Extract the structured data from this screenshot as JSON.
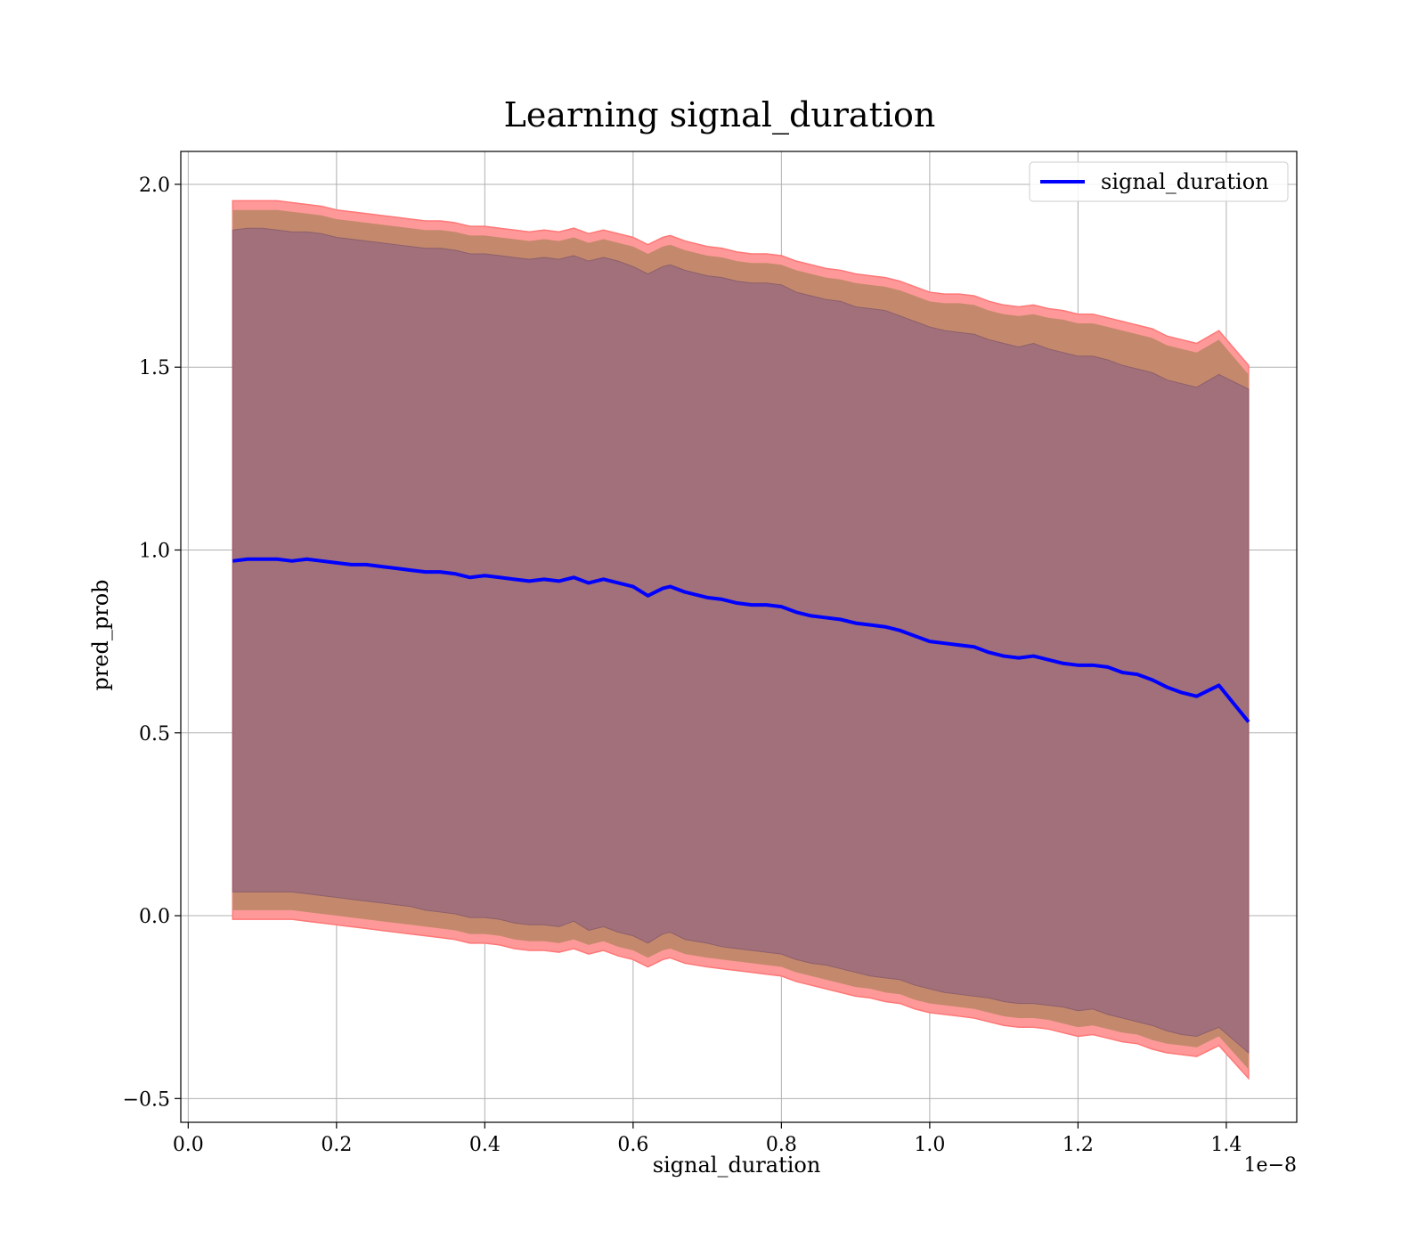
{
  "chart_data": {
    "type": "line",
    "title": "Learning signal_duration",
    "xlabel": "signal_duration",
    "ylabel": "pred_prob",
    "x_offset_label": "1e−8",
    "xlim": [
      -0.01,
      1.495
    ],
    "ylim": [
      -0.565,
      2.09
    ],
    "x_ticks": [
      0.0,
      0.2,
      0.4,
      0.6,
      0.8,
      1.0,
      1.2,
      1.4
    ],
    "x_tick_labels": [
      "0.0",
      "0.2",
      "0.4",
      "0.6",
      "0.8",
      "1.0",
      "1.2",
      "1.4"
    ],
    "y_ticks": [
      -0.5,
      0.0,
      0.5,
      1.0,
      1.5,
      2.0
    ],
    "y_tick_labels": [
      "−0.5",
      "0.0",
      "0.5",
      "1.0",
      "1.5",
      "2.0"
    ],
    "grid": true,
    "legend_position": "top-right",
    "series": [
      {
        "name": "signal_duration",
        "color": "#0000ff",
        "x": [
          0.06,
          0.08,
          0.1,
          0.12,
          0.14,
          0.16,
          0.18,
          0.2,
          0.22,
          0.24,
          0.26,
          0.28,
          0.3,
          0.32,
          0.34,
          0.36,
          0.38,
          0.4,
          0.42,
          0.44,
          0.46,
          0.48,
          0.5,
          0.52,
          0.54,
          0.56,
          0.58,
          0.6,
          0.62,
          0.64,
          0.65,
          0.67,
          0.7,
          0.72,
          0.74,
          0.76,
          0.78,
          0.8,
          0.82,
          0.84,
          0.86,
          0.88,
          0.9,
          0.92,
          0.94,
          0.96,
          0.98,
          1.0,
          1.02,
          1.04,
          1.06,
          1.08,
          1.1,
          1.12,
          1.14,
          1.16,
          1.18,
          1.2,
          1.22,
          1.24,
          1.26,
          1.28,
          1.3,
          1.32,
          1.34,
          1.36,
          1.39,
          1.43
        ],
        "mean": [
          0.97,
          0.975,
          0.975,
          0.975,
          0.97,
          0.975,
          0.97,
          0.965,
          0.96,
          0.96,
          0.955,
          0.95,
          0.945,
          0.94,
          0.94,
          0.935,
          0.925,
          0.93,
          0.925,
          0.92,
          0.915,
          0.92,
          0.915,
          0.925,
          0.91,
          0.92,
          0.91,
          0.9,
          0.875,
          0.895,
          0.9,
          0.885,
          0.87,
          0.865,
          0.855,
          0.85,
          0.85,
          0.845,
          0.83,
          0.82,
          0.815,
          0.81,
          0.8,
          0.795,
          0.79,
          0.78,
          0.765,
          0.75,
          0.745,
          0.74,
          0.735,
          0.72,
          0.71,
          0.705,
          0.71,
          0.7,
          0.69,
          0.685,
          0.685,
          0.68,
          0.665,
          0.66,
          0.645,
          0.625,
          0.61,
          0.6,
          0.63,
          0.53
        ],
        "band_outer_upper": [
          1.955,
          1.955,
          1.955,
          1.955,
          1.95,
          1.945,
          1.94,
          1.93,
          1.925,
          1.92,
          1.915,
          1.91,
          1.905,
          1.9,
          1.9,
          1.895,
          1.885,
          1.885,
          1.88,
          1.875,
          1.87,
          1.875,
          1.87,
          1.88,
          1.865,
          1.875,
          1.865,
          1.855,
          1.835,
          1.855,
          1.86,
          1.845,
          1.83,
          1.825,
          1.815,
          1.81,
          1.81,
          1.805,
          1.79,
          1.78,
          1.77,
          1.765,
          1.755,
          1.75,
          1.745,
          1.735,
          1.72,
          1.705,
          1.7,
          1.7,
          1.695,
          1.68,
          1.67,
          1.665,
          1.67,
          1.66,
          1.655,
          1.645,
          1.645,
          1.635,
          1.625,
          1.615,
          1.605,
          1.585,
          1.575,
          1.565,
          1.6,
          1.505
        ],
        "band_inner_upper": [
          1.875,
          1.88,
          1.88,
          1.875,
          1.87,
          1.87,
          1.865,
          1.855,
          1.85,
          1.845,
          1.84,
          1.835,
          1.83,
          1.825,
          1.825,
          1.82,
          1.81,
          1.81,
          1.805,
          1.8,
          1.795,
          1.8,
          1.795,
          1.805,
          1.79,
          1.8,
          1.79,
          1.775,
          1.755,
          1.775,
          1.78,
          1.765,
          1.75,
          1.745,
          1.735,
          1.73,
          1.73,
          1.725,
          1.705,
          1.695,
          1.685,
          1.68,
          1.665,
          1.66,
          1.655,
          1.64,
          1.625,
          1.61,
          1.6,
          1.595,
          1.59,
          1.575,
          1.565,
          1.555,
          1.565,
          1.55,
          1.54,
          1.53,
          1.53,
          1.52,
          1.505,
          1.495,
          1.485,
          1.465,
          1.455,
          1.445,
          1.48,
          1.44
        ],
        "band_inner_lower": [
          0.065,
          0.065,
          0.065,
          0.065,
          0.065,
          0.06,
          0.055,
          0.05,
          0.045,
          0.04,
          0.035,
          0.03,
          0.025,
          0.015,
          0.01,
          0.005,
          -0.005,
          -0.005,
          -0.01,
          -0.02,
          -0.025,
          -0.025,
          -0.03,
          -0.015,
          -0.04,
          -0.03,
          -0.045,
          -0.055,
          -0.075,
          -0.05,
          -0.045,
          -0.065,
          -0.075,
          -0.085,
          -0.09,
          -0.095,
          -0.1,
          -0.105,
          -0.12,
          -0.13,
          -0.135,
          -0.145,
          -0.155,
          -0.165,
          -0.17,
          -0.175,
          -0.19,
          -0.2,
          -0.21,
          -0.215,
          -0.22,
          -0.225,
          -0.235,
          -0.24,
          -0.24,
          -0.245,
          -0.25,
          -0.26,
          -0.255,
          -0.27,
          -0.28,
          -0.29,
          -0.3,
          -0.315,
          -0.325,
          -0.33,
          -0.305,
          -0.375
        ],
        "band_outer_lower": [
          -0.01,
          -0.01,
          -0.01,
          -0.01,
          -0.01,
          -0.015,
          -0.02,
          -0.025,
          -0.03,
          -0.035,
          -0.04,
          -0.045,
          -0.05,
          -0.055,
          -0.06,
          -0.065,
          -0.075,
          -0.075,
          -0.08,
          -0.09,
          -0.095,
          -0.095,
          -0.1,
          -0.09,
          -0.105,
          -0.095,
          -0.11,
          -0.12,
          -0.14,
          -0.12,
          -0.115,
          -0.13,
          -0.14,
          -0.145,
          -0.15,
          -0.155,
          -0.16,
          -0.165,
          -0.18,
          -0.19,
          -0.2,
          -0.21,
          -0.22,
          -0.225,
          -0.235,
          -0.24,
          -0.255,
          -0.265,
          -0.27,
          -0.275,
          -0.28,
          -0.29,
          -0.3,
          -0.305,
          -0.305,
          -0.31,
          -0.32,
          -0.33,
          -0.325,
          -0.335,
          -0.345,
          -0.35,
          -0.365,
          -0.375,
          -0.38,
          -0.385,
          -0.355,
          -0.445
        ]
      }
    ],
    "colors": {
      "outer_band": "#ff9999",
      "outer_band_edge": "#ff7777",
      "middle_band": "#c4896c",
      "inner_band": "#a1707a",
      "grid": "#b0b0b0",
      "axes": "#000000"
    }
  }
}
